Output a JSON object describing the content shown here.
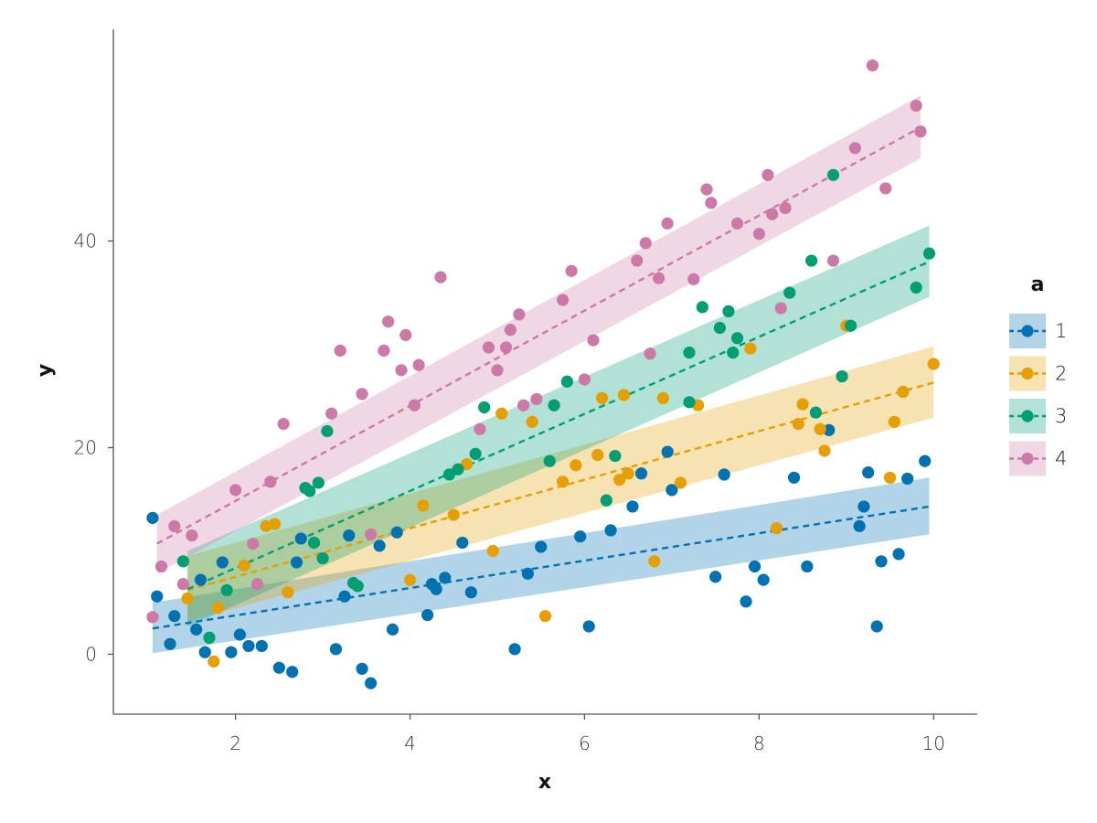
{
  "chart_data": {
    "type": "scatter",
    "xlabel": "x",
    "ylabel": "y",
    "xlim": [
      0.6,
      10.5
    ],
    "ylim": [
      -5.8,
      60.5
    ],
    "x_ticks": [
      2,
      4,
      6,
      8,
      10
    ],
    "y_ticks": [
      0,
      20,
      40
    ],
    "grid": false,
    "legend": {
      "title": "a",
      "placement": "right"
    },
    "series": [
      {
        "name": "1",
        "color": "#0072B2",
        "fit": {
          "x0": 1.05,
          "y0": 2.5,
          "x1": 9.95,
          "y1": 14.3
        },
        "band": {
          "upper0": 5.0,
          "lower0": 0.1,
          "upper1": 17.1,
          "lower1": 11.6
        },
        "points": [
          [
            1.05,
            13.2
          ],
          [
            1.1,
            5.6
          ],
          [
            1.25,
            1.0
          ],
          [
            1.3,
            3.7
          ],
          [
            1.55,
            2.4
          ],
          [
            1.6,
            7.2
          ],
          [
            1.65,
            0.2
          ],
          [
            1.85,
            8.9
          ],
          [
            1.95,
            0.2
          ],
          [
            2.05,
            1.9
          ],
          [
            2.15,
            0.8
          ],
          [
            2.3,
            0.8
          ],
          [
            2.5,
            -1.3
          ],
          [
            2.65,
            -1.7
          ],
          [
            2.7,
            8.9
          ],
          [
            2.75,
            11.2
          ],
          [
            3.15,
            0.5
          ],
          [
            3.25,
            5.6
          ],
          [
            3.3,
            11.5
          ],
          [
            3.45,
            -1.4
          ],
          [
            3.55,
            -2.8
          ],
          [
            3.65,
            10.5
          ],
          [
            3.8,
            2.4
          ],
          [
            3.85,
            11.8
          ],
          [
            4.2,
            3.8
          ],
          [
            4.25,
            6.8
          ],
          [
            4.3,
            6.3
          ],
          [
            4.4,
            7.4
          ],
          [
            4.6,
            10.8
          ],
          [
            4.7,
            6.0
          ],
          [
            5.2,
            0.5
          ],
          [
            5.35,
            7.8
          ],
          [
            5.5,
            10.4
          ],
          [
            5.95,
            11.4
          ],
          [
            6.05,
            2.7
          ],
          [
            6.3,
            12.0
          ],
          [
            6.55,
            14.3
          ],
          [
            6.65,
            17.5
          ],
          [
            6.95,
            19.6
          ],
          [
            7.0,
            15.9
          ],
          [
            7.5,
            7.5
          ],
          [
            7.6,
            17.4
          ],
          [
            7.85,
            5.1
          ],
          [
            7.95,
            8.5
          ],
          [
            8.05,
            7.2
          ],
          [
            8.4,
            17.1
          ],
          [
            8.55,
            8.5
          ],
          [
            8.8,
            21.7
          ],
          [
            9.15,
            12.4
          ],
          [
            9.2,
            14.3
          ],
          [
            9.25,
            17.6
          ],
          [
            9.35,
            2.7
          ],
          [
            9.4,
            9.0
          ],
          [
            9.6,
            9.7
          ],
          [
            9.7,
            17.0
          ],
          [
            9.9,
            18.7
          ]
        ]
      },
      {
        "name": "2",
        "color": "#E69F00",
        "fit": {
          "x0": 1.45,
          "y0": 6.2,
          "x1": 10.0,
          "y1": 26.3
        },
        "band": {
          "upper0": 9.5,
          "lower0": 3.2,
          "upper1": 29.8,
          "lower1": 22.9
        },
        "points": [
          [
            1.45,
            5.4
          ],
          [
            1.75,
            -0.7
          ],
          [
            1.8,
            4.5
          ],
          [
            2.1,
            8.6
          ],
          [
            2.35,
            12.4
          ],
          [
            2.45,
            12.6
          ],
          [
            2.6,
            6.0
          ],
          [
            4.0,
            7.2
          ],
          [
            4.15,
            14.4
          ],
          [
            4.5,
            13.5
          ],
          [
            4.65,
            18.4
          ],
          [
            4.95,
            10.0
          ],
          [
            5.05,
            23.3
          ],
          [
            5.4,
            22.5
          ],
          [
            5.55,
            3.7
          ],
          [
            5.75,
            16.7
          ],
          [
            5.9,
            18.3
          ],
          [
            6.15,
            19.3
          ],
          [
            6.2,
            24.8
          ],
          [
            6.4,
            16.9
          ],
          [
            6.45,
            25.1
          ],
          [
            6.5,
            17.5
          ],
          [
            6.8,
            9.0
          ],
          [
            6.9,
            24.8
          ],
          [
            7.1,
            16.6
          ],
          [
            7.3,
            24.1
          ],
          [
            7.9,
            29.6
          ],
          [
            8.2,
            12.2
          ],
          [
            8.45,
            22.3
          ],
          [
            8.5,
            24.2
          ],
          [
            8.7,
            21.8
          ],
          [
            8.75,
            19.7
          ],
          [
            9.0,
            31.8
          ],
          [
            9.5,
            17.1
          ],
          [
            9.55,
            22.5
          ],
          [
            9.65,
            25.4
          ],
          [
            10.0,
            28.1
          ]
        ]
      },
      {
        "name": "3",
        "color": "#009E73",
        "fit": {
          "x0": 1.45,
          "y0": 6.3,
          "x1": 9.95,
          "y1": 38.0
        },
        "band": {
          "upper0": 10.0,
          "lower0": 2.7,
          "upper1": 41.5,
          "lower1": 34.6
        },
        "points": [
          [
            1.4,
            9.0
          ],
          [
            1.7,
            1.6
          ],
          [
            1.9,
            6.2
          ],
          [
            2.8,
            16.1
          ],
          [
            2.85,
            15.8
          ],
          [
            2.9,
            10.8
          ],
          [
            2.95,
            16.6
          ],
          [
            3.0,
            9.3
          ],
          [
            3.05,
            21.6
          ],
          [
            3.35,
            6.9
          ],
          [
            3.4,
            6.6
          ],
          [
            4.45,
            17.4
          ],
          [
            4.55,
            17.9
          ],
          [
            4.75,
            19.4
          ],
          [
            4.85,
            23.9
          ],
          [
            5.6,
            18.7
          ],
          [
            5.65,
            24.1
          ],
          [
            5.8,
            26.4
          ],
          [
            6.25,
            14.9
          ],
          [
            6.35,
            19.2
          ],
          [
            7.2,
            29.2
          ],
          [
            7.2,
            24.4
          ],
          [
            7.35,
            33.6
          ],
          [
            7.55,
            31.6
          ],
          [
            7.65,
            33.2
          ],
          [
            7.7,
            29.2
          ],
          [
            7.75,
            30.6
          ],
          [
            8.35,
            35.0
          ],
          [
            8.6,
            38.1
          ],
          [
            8.65,
            23.4
          ],
          [
            8.85,
            46.4
          ],
          [
            8.95,
            26.9
          ],
          [
            9.05,
            31.8
          ],
          [
            9.8,
            35.5
          ],
          [
            9.95,
            38.8
          ]
        ]
      },
      {
        "name": "4",
        "color": "#CC79A7",
        "fit": {
          "x0": 1.1,
          "y0": 10.7,
          "x1": 9.85,
          "y1": 51.0
        },
        "band": {
          "upper0": 13.5,
          "lower0": 7.8,
          "upper1": 54.1,
          "lower1": 48.0
        },
        "points": [
          [
            1.05,
            3.6
          ],
          [
            1.15,
            8.5
          ],
          [
            1.3,
            12.4
          ],
          [
            1.4,
            6.8
          ],
          [
            1.5,
            11.5
          ],
          [
            2.0,
            15.9
          ],
          [
            2.2,
            10.7
          ],
          [
            2.25,
            6.8
          ],
          [
            2.4,
            16.7
          ],
          [
            2.55,
            22.3
          ],
          [
            3.1,
            23.3
          ],
          [
            3.2,
            29.4
          ],
          [
            3.45,
            25.2
          ],
          [
            3.55,
            11.6
          ],
          [
            3.7,
            29.4
          ],
          [
            3.75,
            32.2
          ],
          [
            3.9,
            27.5
          ],
          [
            3.95,
            30.9
          ],
          [
            4.05,
            24.1
          ],
          [
            4.1,
            28.0
          ],
          [
            4.35,
            36.5
          ],
          [
            4.8,
            21.8
          ],
          [
            4.9,
            29.7
          ],
          [
            5.0,
            27.5
          ],
          [
            5.1,
            29.7
          ],
          [
            5.15,
            31.4
          ],
          [
            5.25,
            32.9
          ],
          [
            5.3,
            24.1
          ],
          [
            5.45,
            24.7
          ],
          [
            5.75,
            34.3
          ],
          [
            5.85,
            37.1
          ],
          [
            6.0,
            26.6
          ],
          [
            6.1,
            30.4
          ],
          [
            6.6,
            38.1
          ],
          [
            6.7,
            39.8
          ],
          [
            6.75,
            29.1
          ],
          [
            6.85,
            36.4
          ],
          [
            6.95,
            41.7
          ],
          [
            7.25,
            36.3
          ],
          [
            7.4,
            45.0
          ],
          [
            7.45,
            43.7
          ],
          [
            7.75,
            41.7
          ],
          [
            8.0,
            40.7
          ],
          [
            8.1,
            46.4
          ],
          [
            8.15,
            42.6
          ],
          [
            8.25,
            33.5
          ],
          [
            8.3,
            43.2
          ],
          [
            8.85,
            38.1
          ],
          [
            9.1,
            49.0
          ],
          [
            9.3,
            57.0
          ],
          [
            9.45,
            45.1
          ],
          [
            9.8,
            53.1
          ],
          [
            9.85,
            50.6
          ]
        ]
      }
    ]
  }
}
